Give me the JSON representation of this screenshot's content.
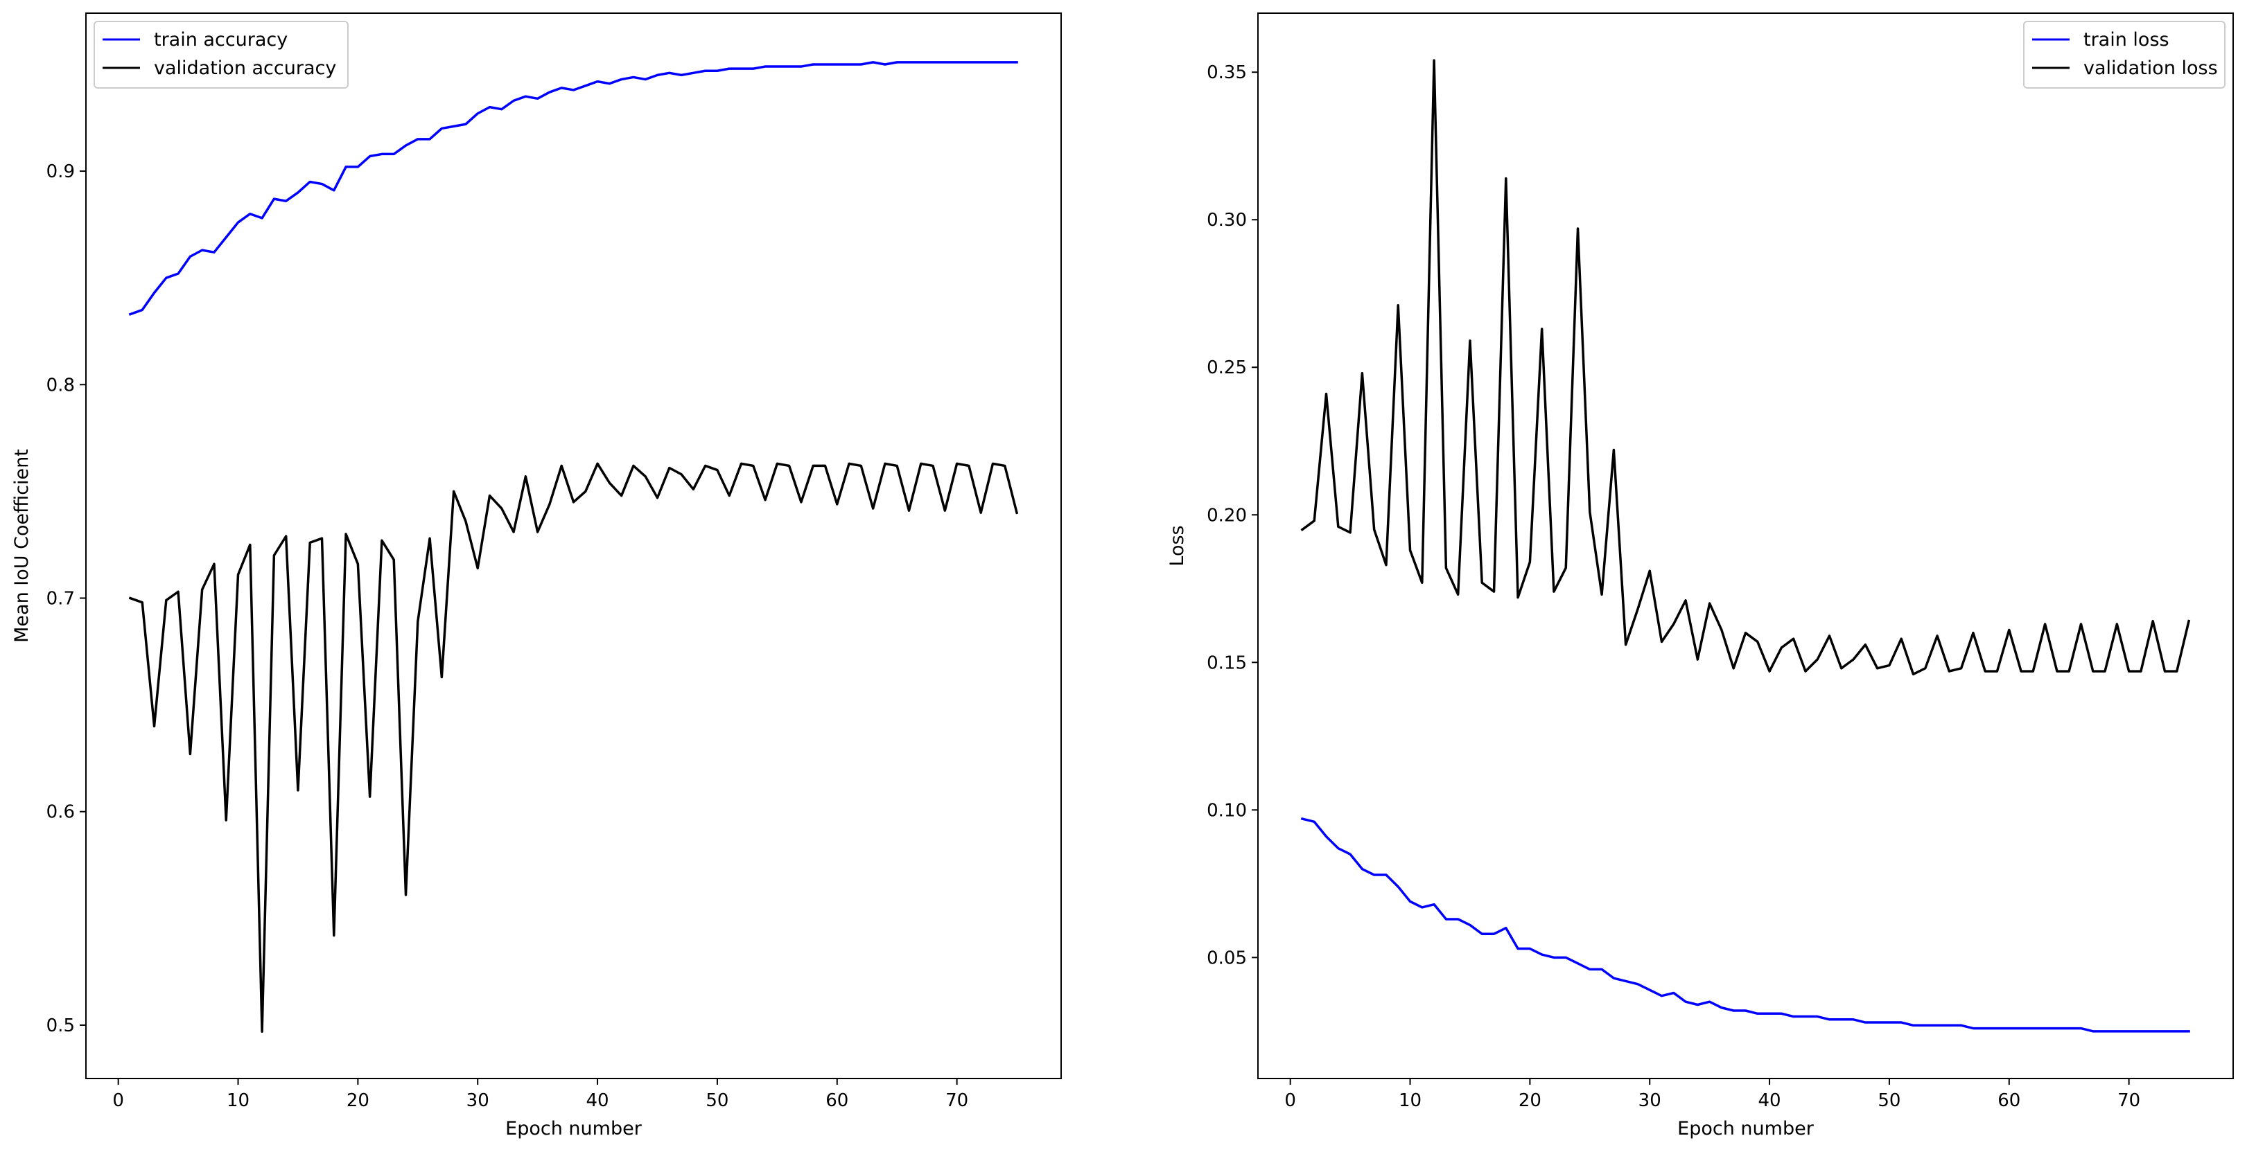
{
  "chart_data": [
    {
      "type": "line",
      "title": "",
      "xlabel": "Epoch number",
      "ylabel": "Mean IoU Coefficient",
      "xlim": [
        -2.7,
        78.7
      ],
      "ylim": [
        0.475,
        0.974
      ],
      "xticks": [
        0,
        10,
        20,
        30,
        40,
        50,
        60,
        70
      ],
      "xtick_labels": [
        "0",
        "10",
        "20",
        "30",
        "40",
        "50",
        "60",
        "70"
      ],
      "yticks": [
        0.5,
        0.6,
        0.7,
        0.8,
        0.9
      ],
      "ytick_labels": [
        "0.5",
        "0.6",
        "0.7",
        "0.8",
        "0.9"
      ],
      "grid": false,
      "legend": "top-left",
      "x": [
        1,
        2,
        3,
        4,
        5,
        6,
        7,
        8,
        9,
        10,
        11,
        12,
        13,
        14,
        15,
        16,
        17,
        18,
        19,
        20,
        21,
        22,
        23,
        24,
        25,
        26,
        27,
        28,
        29,
        30,
        31,
        32,
        33,
        34,
        35,
        36,
        37,
        38,
        39,
        40,
        41,
        42,
        43,
        44,
        45,
        46,
        47,
        48,
        49,
        50,
        51,
        52,
        53,
        54,
        55,
        56,
        57,
        58,
        59,
        60,
        61,
        62,
        63,
        64,
        65,
        66,
        67,
        68,
        69,
        70,
        71,
        72,
        73,
        74,
        75
      ],
      "series": [
        {
          "name": "train accuracy",
          "color": "#0000ff",
          "values": [
            0.833,
            0.835,
            0.843,
            0.85,
            0.852,
            0.86,
            0.863,
            0.862,
            0.869,
            0.876,
            0.88,
            0.878,
            0.887,
            0.886,
            0.89,
            0.895,
            0.894,
            0.891,
            0.902,
            0.902,
            0.907,
            0.908,
            0.908,
            0.912,
            0.915,
            0.915,
            0.92,
            0.921,
            0.922,
            0.927,
            0.93,
            0.929,
            0.933,
            0.935,
            0.934,
            0.937,
            0.939,
            0.938,
            0.94,
            0.942,
            0.941,
            0.943,
            0.944,
            0.943,
            0.945,
            0.946,
            0.945,
            0.946,
            0.947,
            0.947,
            0.948,
            0.948,
            0.948,
            0.949,
            0.949,
            0.949,
            0.949,
            0.95,
            0.95,
            0.95,
            0.95,
            0.95,
            0.951,
            0.95,
            0.951,
            0.951,
            0.951,
            0.951,
            0.951,
            0.951,
            0.951,
            0.951,
            0.951,
            0.951,
            0.951
          ]
        },
        {
          "name": "validation accuracy",
          "color": "#000000",
          "values": [
            0.7,
            0.698,
            0.64,
            0.699,
            0.703,
            0.627,
            0.704,
            0.716,
            0.596,
            0.711,
            0.725,
            0.497,
            0.72,
            0.729,
            0.61,
            0.726,
            0.728,
            0.542,
            0.73,
            0.716,
            0.607,
            0.727,
            0.718,
            0.561,
            0.689,
            0.728,
            0.663,
            0.75,
            0.736,
            0.714,
            0.748,
            0.742,
            0.731,
            0.757,
            0.731,
            0.744,
            0.762,
            0.745,
            0.75,
            0.763,
            0.754,
            0.748,
            0.762,
            0.757,
            0.747,
            0.761,
            0.758,
            0.751,
            0.762,
            0.76,
            0.748,
            0.763,
            0.762,
            0.746,
            0.763,
            0.762,
            0.745,
            0.762,
            0.762,
            0.744,
            0.763,
            0.762,
            0.742,
            0.763,
            0.762,
            0.741,
            0.763,
            0.762,
            0.741,
            0.763,
            0.762,
            0.74,
            0.763,
            0.762,
            0.74
          ]
        }
      ]
    },
    {
      "type": "line",
      "title": "",
      "xlabel": "Epoch number",
      "ylabel": "Loss",
      "xlim": [
        -2.7,
        78.7
      ],
      "ylim": [
        0.009,
        0.37
      ],
      "xticks": [
        0,
        10,
        20,
        30,
        40,
        50,
        60,
        70
      ],
      "xtick_labels": [
        "0",
        "10",
        "20",
        "30",
        "40",
        "50",
        "60",
        "70"
      ],
      "yticks": [
        0.05,
        0.1,
        0.15,
        0.2,
        0.25,
        0.3,
        0.35
      ],
      "ytick_labels": [
        "0.05",
        "0.10",
        "0.15",
        "0.20",
        "0.25",
        "0.30",
        "0.35"
      ],
      "grid": false,
      "legend": "top-right",
      "x": [
        1,
        2,
        3,
        4,
        5,
        6,
        7,
        8,
        9,
        10,
        11,
        12,
        13,
        14,
        15,
        16,
        17,
        18,
        19,
        20,
        21,
        22,
        23,
        24,
        25,
        26,
        27,
        28,
        29,
        30,
        31,
        32,
        33,
        34,
        35,
        36,
        37,
        38,
        39,
        40,
        41,
        42,
        43,
        44,
        45,
        46,
        47,
        48,
        49,
        50,
        51,
        52,
        53,
        54,
        55,
        56,
        57,
        58,
        59,
        60,
        61,
        62,
        63,
        64,
        65,
        66,
        67,
        68,
        69,
        70,
        71,
        72,
        73,
        74,
        75
      ],
      "series": [
        {
          "name": "train loss",
          "color": "#0000ff",
          "values": [
            0.097,
            0.096,
            0.091,
            0.087,
            0.085,
            0.08,
            0.078,
            0.078,
            0.074,
            0.069,
            0.067,
            0.068,
            0.063,
            0.063,
            0.061,
            0.058,
            0.058,
            0.06,
            0.053,
            0.053,
            0.051,
            0.05,
            0.05,
            0.048,
            0.046,
            0.046,
            0.043,
            0.042,
            0.041,
            0.039,
            0.037,
            0.038,
            0.035,
            0.034,
            0.035,
            0.033,
            0.032,
            0.032,
            0.031,
            0.031,
            0.031,
            0.03,
            0.03,
            0.03,
            0.029,
            0.029,
            0.029,
            0.028,
            0.028,
            0.028,
            0.028,
            0.027,
            0.027,
            0.027,
            0.027,
            0.027,
            0.026,
            0.026,
            0.026,
            0.026,
            0.026,
            0.026,
            0.026,
            0.026,
            0.026,
            0.026,
            0.025,
            0.025,
            0.025,
            0.025,
            0.025,
            0.025,
            0.025,
            0.025,
            0.025
          ]
        },
        {
          "name": "validation loss",
          "color": "#000000",
          "values": [
            0.195,
            0.198,
            0.241,
            0.196,
            0.194,
            0.248,
            0.195,
            0.183,
            0.271,
            0.188,
            0.177,
            0.354,
            0.182,
            0.173,
            0.259,
            0.177,
            0.174,
            0.314,
            0.172,
            0.184,
            0.263,
            0.174,
            0.182,
            0.297,
            0.201,
            0.173,
            0.222,
            0.156,
            0.168,
            0.181,
            0.157,
            0.163,
            0.171,
            0.151,
            0.17,
            0.161,
            0.148,
            0.16,
            0.157,
            0.147,
            0.155,
            0.158,
            0.147,
            0.151,
            0.159,
            0.148,
            0.151,
            0.156,
            0.148,
            0.149,
            0.158,
            0.146,
            0.148,
            0.159,
            0.147,
            0.148,
            0.16,
            0.147,
            0.147,
            0.161,
            0.147,
            0.147,
            0.163,
            0.147,
            0.147,
            0.163,
            0.147,
            0.147,
            0.163,
            0.147,
            0.147,
            0.164,
            0.147,
            0.147,
            0.164
          ]
        }
      ]
    }
  ]
}
